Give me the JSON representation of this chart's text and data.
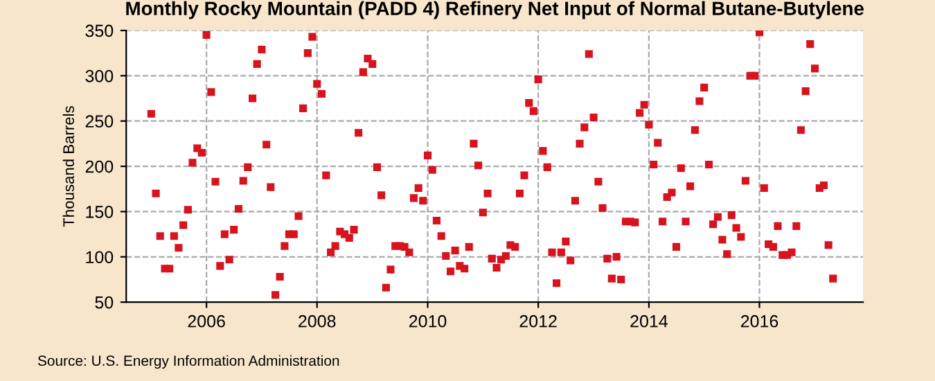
{
  "chart_data": {
    "type": "scatter",
    "title": "Monthly Rocky Mountain (PADD 4) Refinery Net Input of Normal Butane-Butylene",
    "ylabel": "Thousand Barrels",
    "annotations": [
      "Source: U.S. Energy Information Administration"
    ],
    "series": [
      {
        "color": "#d7141e",
        "x": [
          "2005-01",
          "2005-02",
          "2005-03",
          "2005-04",
          "2005-05",
          "2005-06",
          "2005-07",
          "2005-08",
          "2005-09",
          "2005-10",
          "2005-11",
          "2005-12",
          "2006-01",
          "2006-02",
          "2006-03",
          "2006-04",
          "2006-05",
          "2006-06",
          "2006-07",
          "2006-08",
          "2006-09",
          "2006-10",
          "2006-11",
          "2006-12",
          "2007-01",
          "2007-02",
          "2007-03",
          "2007-04",
          "2007-05",
          "2007-06",
          "2007-07",
          "2007-08",
          "2007-09",
          "2007-10",
          "2007-11",
          "2007-12",
          "2008-01",
          "2008-02",
          "2008-03",
          "2008-04",
          "2008-05",
          "2008-06",
          "2008-07",
          "2008-08",
          "2008-09",
          "2008-10",
          "2008-11",
          "2008-12",
          "2009-01",
          "2009-02",
          "2009-03",
          "2009-04",
          "2009-05",
          "2009-06",
          "2009-07",
          "2009-08",
          "2009-09",
          "2009-10",
          "2009-11",
          "2009-12",
          "2010-01",
          "2010-02",
          "2010-03",
          "2010-04",
          "2010-05",
          "2010-06",
          "2010-07",
          "2010-08",
          "2010-09",
          "2010-10",
          "2010-11",
          "2010-12",
          "2011-01",
          "2011-02",
          "2011-03",
          "2011-04",
          "2011-05",
          "2011-06",
          "2011-07",
          "2011-08",
          "2011-09",
          "2011-10",
          "2011-11",
          "2011-12",
          "2012-01",
          "2012-02",
          "2012-03",
          "2012-04",
          "2012-05",
          "2012-06",
          "2012-07",
          "2012-08",
          "2012-09",
          "2012-10",
          "2012-11",
          "2012-12",
          "2013-01",
          "2013-02",
          "2013-03",
          "2013-04",
          "2013-05",
          "2013-06",
          "2013-07",
          "2013-08",
          "2013-09",
          "2013-10",
          "2013-11",
          "2013-12",
          "2014-01",
          "2014-02",
          "2014-03",
          "2014-04",
          "2014-05",
          "2014-06",
          "2014-07",
          "2014-08",
          "2014-09",
          "2014-10",
          "2014-11",
          "2014-12",
          "2015-01",
          "2015-02",
          "2015-03",
          "2015-04",
          "2015-05",
          "2015-06",
          "2015-07",
          "2015-08",
          "2015-09",
          "2015-10",
          "2015-11",
          "2015-12",
          "2016-01",
          "2016-02",
          "2016-03",
          "2016-04",
          "2016-05",
          "2016-06",
          "2016-07",
          "2016-08",
          "2016-09",
          "2016-10",
          "2016-11",
          "2016-12",
          "2017-01",
          "2017-02",
          "2017-03",
          "2017-04",
          "2017-05"
        ],
        "values": [
          258,
          170,
          123,
          87,
          87,
          123,
          110,
          135,
          152,
          204,
          220,
          215,
          345,
          282,
          183,
          90,
          125,
          97,
          130,
          153,
          184,
          199,
          275,
          313,
          329,
          224,
          177,
          58,
          78,
          112,
          125,
          125,
          145,
          264,
          325,
          343,
          291,
          280,
          190,
          105,
          112,
          128,
          125,
          121,
          130,
          237,
          304,
          319,
          313,
          199,
          168,
          66,
          86,
          112,
          112,
          111,
          105,
          165,
          176,
          162,
          212,
          196,
          140,
          123,
          101,
          84,
          107,
          90,
          87,
          111,
          225,
          201,
          149,
          170,
          98,
          88,
          97,
          101,
          113,
          111,
          170,
          190,
          270,
          261,
          296,
          217,
          199,
          105,
          71,
          105,
          117,
          96,
          162,
          225,
          243,
          324,
          254,
          183,
          154,
          98,
          76,
          100,
          75,
          139,
          139,
          138,
          259,
          268,
          246,
          202,
          226,
          139,
          166,
          171,
          111,
          198,
          139,
          178,
          240,
          272,
          287,
          202,
          136,
          144,
          119,
          103,
          146,
          132,
          122,
          184,
          300,
          300,
          348,
          176,
          114,
          111,
          134,
          102,
          102,
          105,
          134,
          240,
          283,
          335,
          308,
          176,
          179,
          113,
          76
        ]
      }
    ],
    "marker": "square",
    "xlim": [
      "2004-07-20",
      "2017-11-15"
    ],
    "xticks": [
      {
        "value": "2006-01-01",
        "label": "2006"
      },
      {
        "value": "2008-01-01",
        "label": "2008"
      },
      {
        "value": "2010-01-01",
        "label": "2010"
      },
      {
        "value": "2012-01-01",
        "label": "2012"
      },
      {
        "value": "2014-01-01",
        "label": "2014"
      },
      {
        "value": "2016-01-01",
        "label": "2016"
      }
    ],
    "ylim": [
      50,
      350
    ],
    "yticks": [
      50,
      100,
      150,
      200,
      250,
      300,
      350
    ],
    "grid": true
  }
}
